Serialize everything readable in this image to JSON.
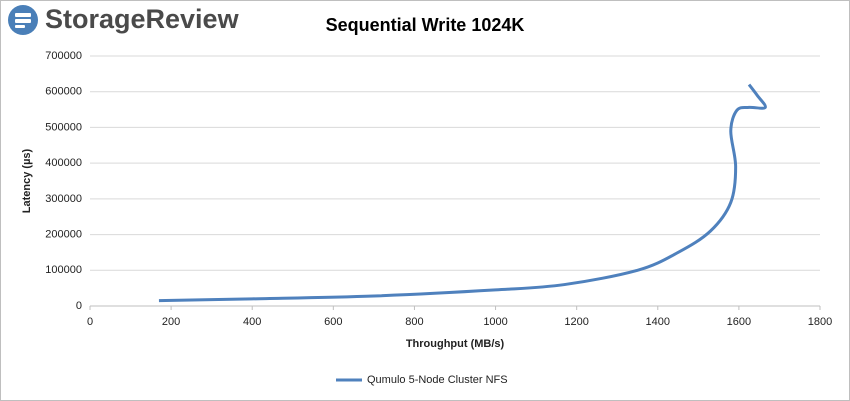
{
  "logo": "StorageReview",
  "chart_data": {
    "type": "line",
    "title": "Sequential Write 1024K",
    "x_label": "Throughput (MB/s)",
    "y_label": "Latency (µs)",
    "series": [
      {
        "name": "Qumulo 5-Node Cluster NFS",
        "color": "#4f81bd",
        "x": [
          170,
          400,
          700,
          1000,
          1170,
          1350,
          1450,
          1530,
          1580,
          1592,
          1580,
          1595,
          1625,
          1665,
          1645,
          1625
        ],
        "values": [
          15000,
          20000,
          28000,
          45000,
          60000,
          100000,
          150000,
          210000,
          290000,
          390000,
          490000,
          548000,
          556000,
          556000,
          590000,
          620000
        ]
      }
    ],
    "xlim": [
      0,
      1800
    ],
    "xticks": [
      0,
      200,
      400,
      600,
      800,
      1000,
      1200,
      1400,
      1600,
      1800
    ],
    "ylim": [
      0,
      700000
    ],
    "yticks": [
      0,
      100000,
      200000,
      300000,
      400000,
      500000,
      600000,
      700000
    ],
    "grid": true,
    "legend": "bottom"
  }
}
